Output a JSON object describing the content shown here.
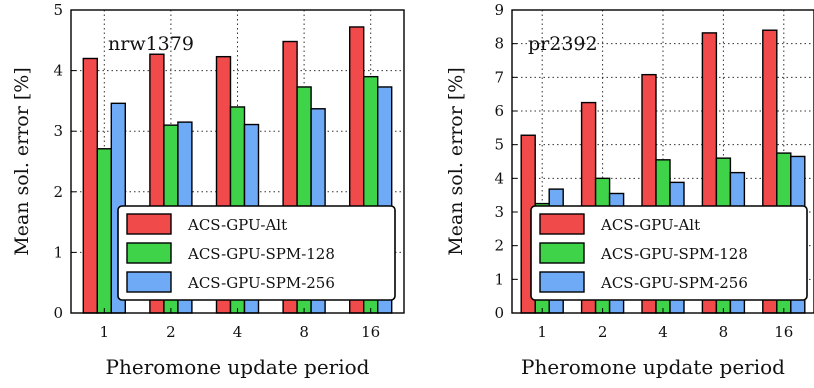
{
  "chart_data": [
    {
      "type": "bar",
      "panel_label": "nrw1379",
      "xlabel": "Pheromone update period",
      "ylabel": "Mean sol. error [%]",
      "categories": [
        "1",
        "2",
        "4",
        "8",
        "16"
      ],
      "ylim": [
        0,
        5
      ],
      "yticks": [
        "0",
        "1",
        "2",
        "3",
        "4",
        "5"
      ],
      "grid": true,
      "legend_position": "lower-right",
      "series": [
        {
          "name": "ACS-GPU-Alt",
          "color": "#f04a4a",
          "values": [
            4.2,
            4.27,
            4.23,
            4.48,
            4.72
          ]
        },
        {
          "name": "ACS-GPU-SPM-128",
          "color": "#3fd34a",
          "values": [
            2.71,
            3.1,
            3.4,
            3.73,
            3.9
          ]
        },
        {
          "name": "ACS-GPU-SPM-256",
          "color": "#6eaaf5",
          "values": [
            3.46,
            3.15,
            3.11,
            3.37,
            3.73
          ]
        }
      ]
    },
    {
      "type": "bar",
      "panel_label": "pr2392",
      "xlabel": "Pheromone update period",
      "ylabel": "Mean sol. error [%]",
      "categories": [
        "1",
        "2",
        "4",
        "8",
        "16"
      ],
      "ylim": [
        0,
        9
      ],
      "yticks": [
        "0",
        "1",
        "2",
        "3",
        "4",
        "5",
        "6",
        "7",
        "8",
        "9"
      ],
      "grid": true,
      "legend_position": "lower-right",
      "series": [
        {
          "name": "ACS-GPU-Alt",
          "color": "#f04a4a",
          "values": [
            5.28,
            6.25,
            7.08,
            8.32,
            8.4
          ]
        },
        {
          "name": "ACS-GPU-SPM-128",
          "color": "#3fd34a",
          "values": [
            3.25,
            4.0,
            4.55,
            4.6,
            4.75
          ]
        },
        {
          "name": "ACS-GPU-SPM-256",
          "color": "#6eaaf5",
          "values": [
            3.68,
            3.55,
            3.88,
            4.17,
            4.65
          ]
        }
      ]
    }
  ]
}
